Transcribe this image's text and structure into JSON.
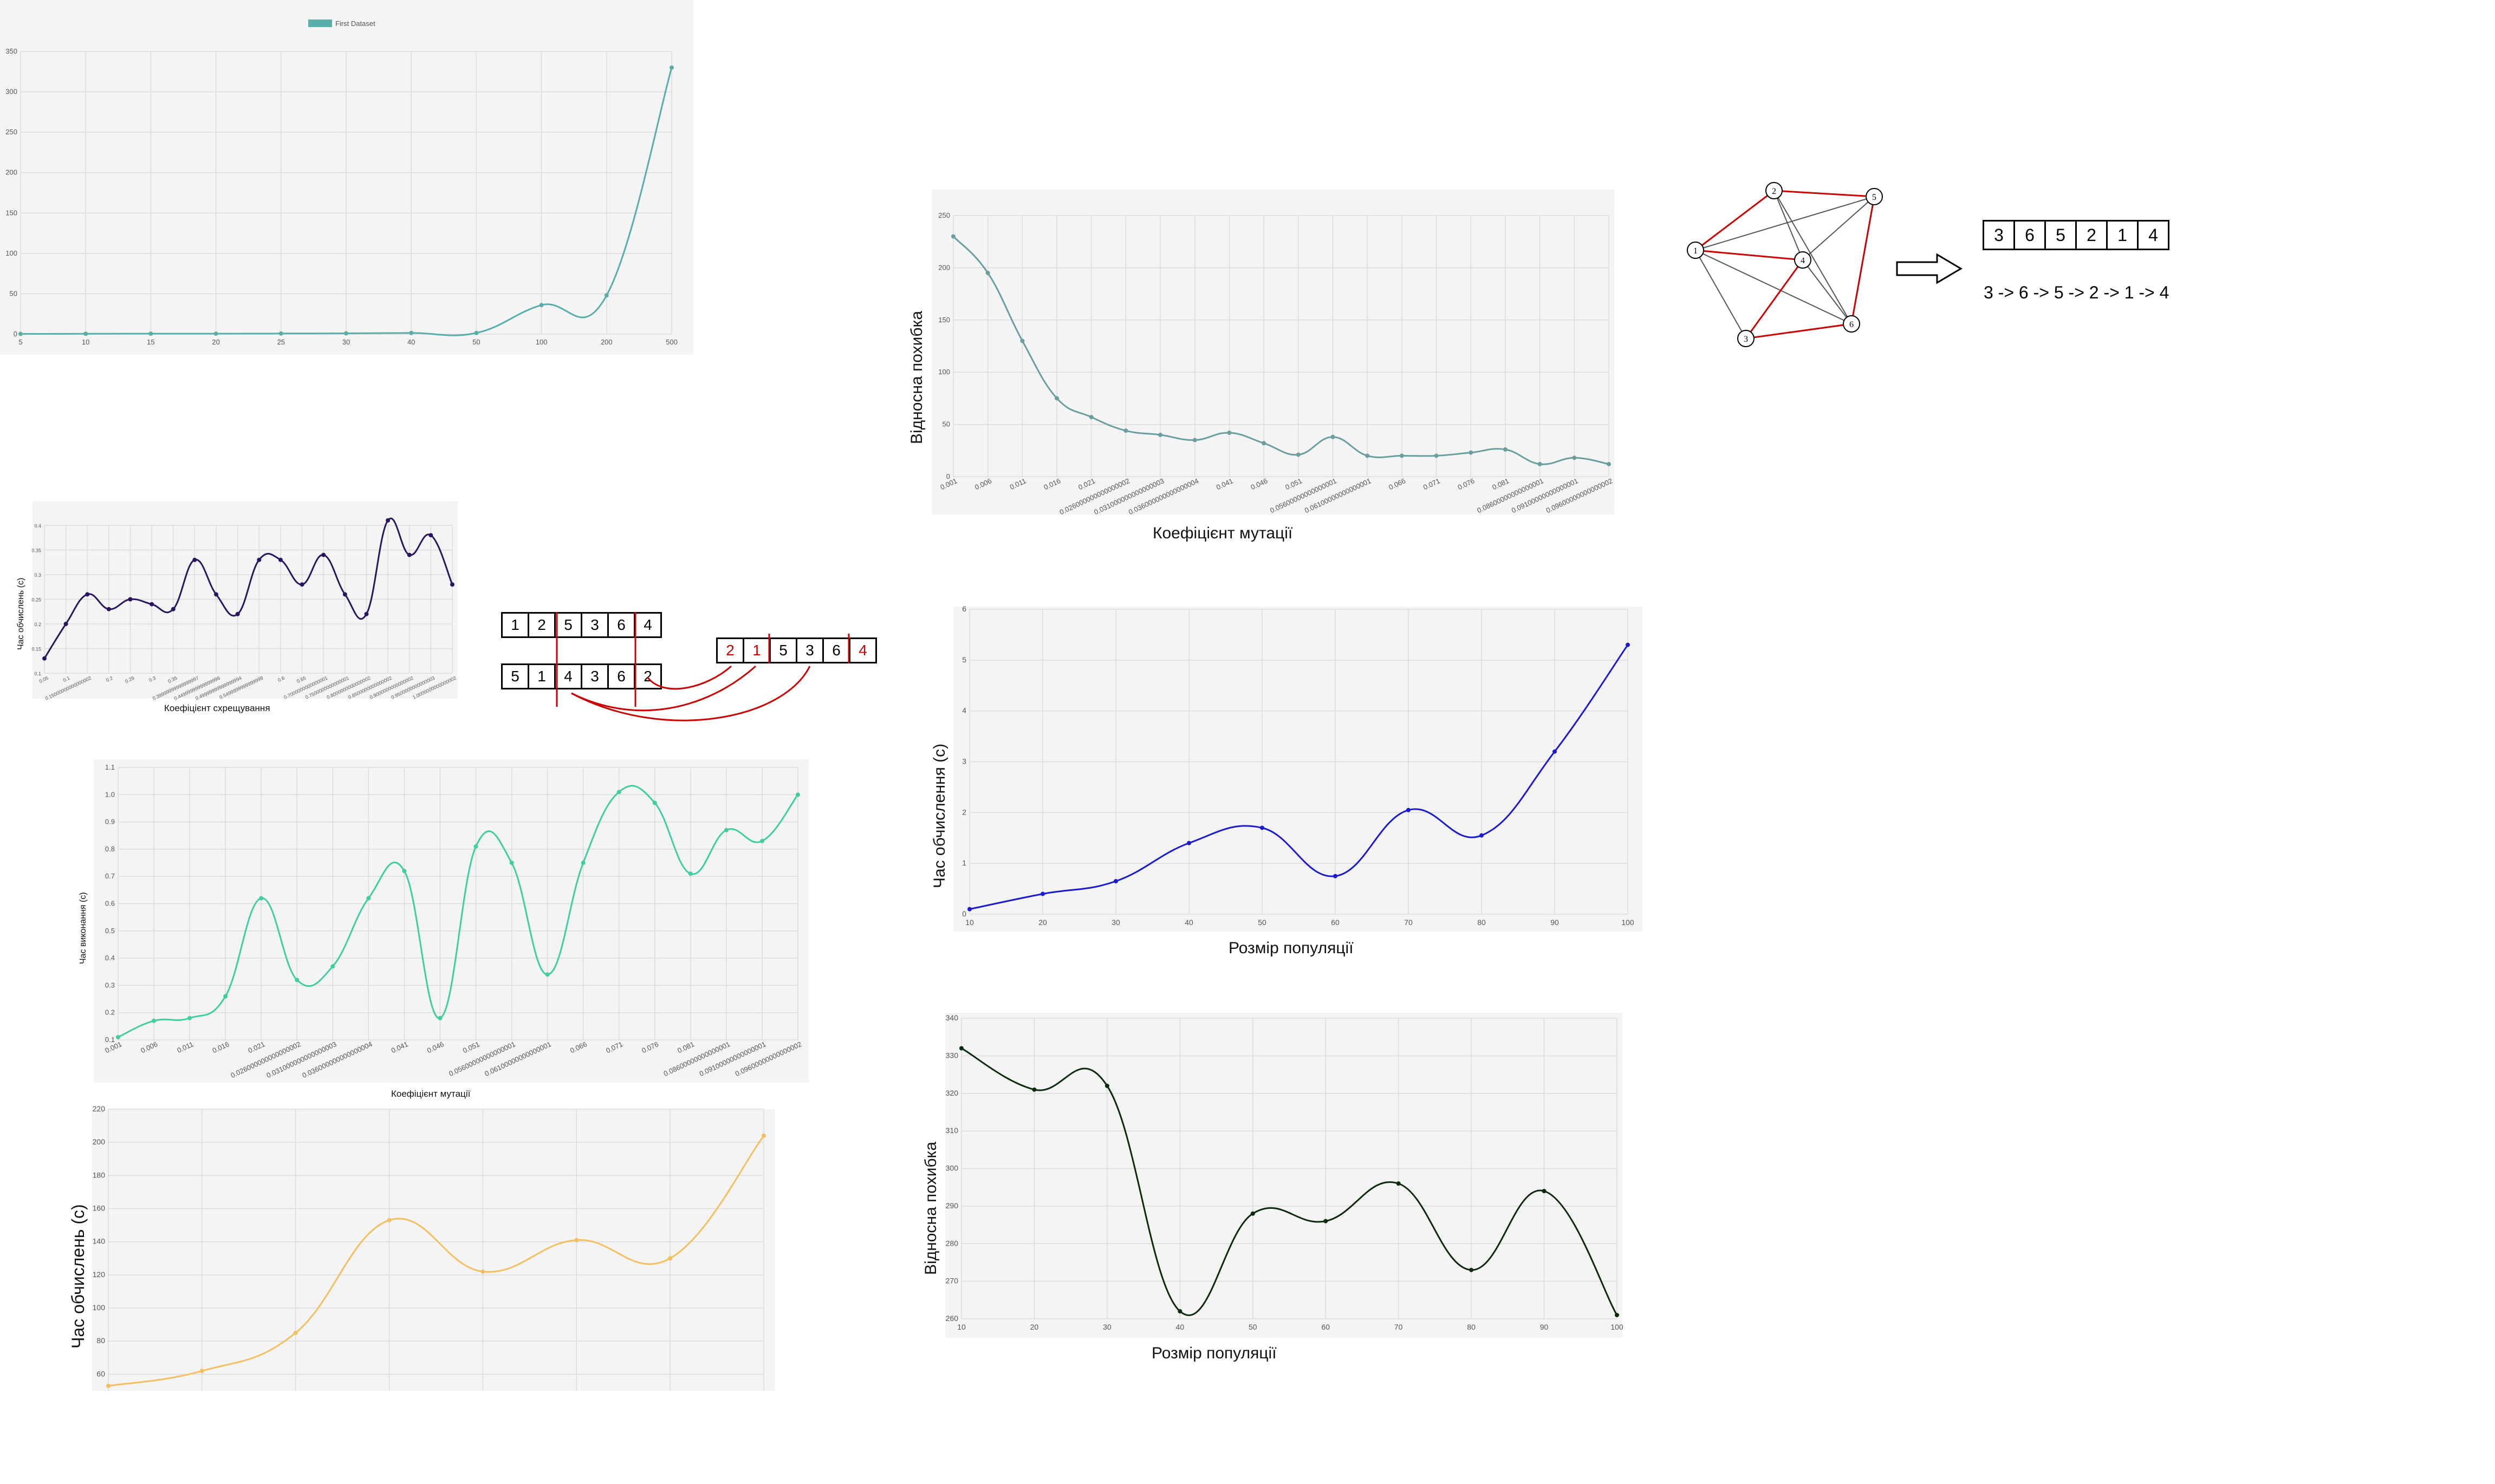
{
  "colors": {
    "teal": "#5aaea9",
    "grayteal": "#6a9ea0",
    "purple": "#2a1660",
    "aqua": "#3fcf9b",
    "orange": "#f2c060",
    "blue": "#1a1acf",
    "darkgreen": "#0c2a0c",
    "red": "#cc0000"
  },
  "chart_data": [
    {
      "id": "c1",
      "type": "line",
      "legend": "First Dataset",
      "legend_position": "top",
      "categories": [
        "5",
        "10",
        "15",
        "20",
        "25",
        "30",
        "40",
        "50",
        "100",
        "200",
        "500"
      ],
      "values": [
        0.3,
        0.5,
        0.6,
        0.6,
        0.8,
        1,
        1.5,
        1.5,
        36,
        48,
        330
      ],
      "ylim": [
        0,
        350
      ],
      "yticks": [
        "0",
        "50",
        "100",
        "150",
        "200",
        "250",
        "300",
        "350"
      ],
      "grid": true,
      "xlabel": "",
      "ylabel": ""
    },
    {
      "id": "c2",
      "type": "line",
      "xlabel": "Коефіцієнт мутації",
      "ylabel": "Відносна похибка",
      "categories": [
        "0.001",
        "0.006",
        "0.011",
        "0.016",
        "0.021",
        "0.026000000000000002",
        "0.031000000000000003",
        "0.036000000000000004",
        "0.041",
        "0.046",
        "0.051",
        "0.05600000000000001",
        "0.06100000000000001",
        "0.066",
        "0.071",
        "0.076",
        "0.081",
        "0.08600000000000001",
        "0.09100000000000001",
        "0.09600000000000002"
      ],
      "values": [
        230,
        195,
        130,
        75,
        57,
        44,
        40,
        35,
        42,
        32,
        21,
        38,
        20,
        20,
        20,
        23,
        26,
        12,
        18,
        12
      ],
      "ylim": [
        0,
        250
      ],
      "yticks": [
        "0",
        "50",
        "100",
        "150",
        "200",
        "250"
      ],
      "grid": true
    },
    {
      "id": "c3",
      "type": "line",
      "xlabel": "Коефіцієнт схрещування",
      "ylabel": "Час обчислень (с)",
      "categories": [
        "0.05",
        "0.1",
        "0.15000000000000002",
        "0.2",
        "0.25",
        "0.3",
        "0.35",
        "0.39999999999999997",
        "0.44999999999999996",
        "0.49999999999999994",
        "0.5499999999999999",
        "0.6",
        "0.65",
        "0.7000000000000001",
        "0.7500000000000001",
        "0.8000000000000002",
        "0.8500000000000002",
        "0.9000000000000002",
        "0.9500000000000003",
        "1.0000000000000002"
      ],
      "values": [
        0.13,
        0.2,
        0.26,
        0.23,
        0.25,
        0.24,
        0.23,
        0.33,
        0.26,
        0.22,
        0.33,
        0.33,
        0.28,
        0.34,
        0.26,
        0.22,
        0.41,
        0.34,
        0.38,
        0.28
      ],
      "ylim": [
        0.1,
        0.4
      ],
      "yticks": [
        "0.1",
        "0.15",
        "0.2",
        "0.25",
        "0.3",
        "0.35",
        "0.4"
      ],
      "grid": true
    },
    {
      "id": "c4",
      "type": "line",
      "xlabel": "Коефіцієнт мутації",
      "ylabel": "Час виконання (с)",
      "categories": [
        "0.001",
        "0.006",
        "0.011",
        "0.016",
        "0.021",
        "0.026000000000000002",
        "0.031000000000000003",
        "0.036000000000000004",
        "0.041",
        "0.046",
        "0.051",
        "0.05600000000000001",
        "0.06100000000000001",
        "0.066",
        "0.071",
        "0.076",
        "0.081",
        "0.08600000000000001",
        "0.09100000000000001",
        "0.09600000000000002"
      ],
      "values": [
        0.11,
        0.17,
        0.18,
        0.26,
        0.62,
        0.32,
        0.37,
        0.62,
        0.72,
        0.18,
        0.81,
        0.75,
        0.34,
        0.75,
        1.01,
        0.97,
        0.71,
        0.87,
        0.83,
        1.0
      ],
      "ylim": [
        0.1,
        1.1
      ],
      "yticks": [
        "0.1",
        "0.2",
        "0.3",
        "0.4",
        "0.5",
        "0.6",
        "0.7",
        "0.8",
        "0.9",
        "1.0",
        "1.1"
      ],
      "grid": true
    },
    {
      "id": "c5",
      "type": "line",
      "xlabel": "",
      "ylabel": "Час обчислень (с)",
      "categories": [
        "",
        "",
        "",
        "",
        "",
        "",
        "",
        ""
      ],
      "values": [
        53,
        62,
        85,
        153,
        122,
        141,
        130,
        204
      ],
      "ylim": [
        50,
        220
      ],
      "yticks": [
        "60",
        "80",
        "100",
        "120",
        "140",
        "160",
        "180",
        "200",
        "220"
      ],
      "grid": true
    },
    {
      "id": "c6",
      "type": "line",
      "xlabel": "Розмір популяції",
      "ylabel": "Час обчислення (с)",
      "categories": [
        "10",
        "20",
        "30",
        "40",
        "50",
        "60",
        "70",
        "80",
        "90",
        "100"
      ],
      "values": [
        0.1,
        0.4,
        0.65,
        1.4,
        1.7,
        0.75,
        2.05,
        1.55,
        3.2,
        5.3
      ],
      "ylim": [
        0,
        6
      ],
      "yticks": [
        "0",
        "1",
        "2",
        "3",
        "4",
        "5",
        "6"
      ],
      "grid": true
    },
    {
      "id": "c7",
      "type": "line",
      "xlabel": "Розмір популяції",
      "ylabel": "Відносна похибка",
      "categories": [
        "10",
        "20",
        "30",
        "40",
        "50",
        "60",
        "70",
        "80",
        "90",
        "100"
      ],
      "values": [
        332,
        321,
        322,
        262,
        288,
        286,
        296,
        273,
        294,
        261
      ],
      "ylim": [
        260,
        340
      ],
      "yticks": [
        "260",
        "270",
        "280",
        "290",
        "300",
        "310",
        "320",
        "330",
        "340"
      ],
      "grid": true
    }
  ],
  "crossover": {
    "parent1": [
      "1",
      "2",
      "5",
      "3",
      "6",
      "4"
    ],
    "parent2": [
      "5",
      "1",
      "4",
      "3",
      "6",
      "2"
    ],
    "child": [
      "2",
      "1",
      "5",
      "3",
      "6",
      "4"
    ],
    "child_red": [
      true,
      true,
      false,
      false,
      false,
      true
    ]
  },
  "graph": {
    "nodes": [
      "1",
      "2",
      "3",
      "4",
      "5",
      "6"
    ],
    "route_cells": [
      "3",
      "6",
      "5",
      "2",
      "1",
      "4"
    ],
    "route_text": "3 -> 6 -> 5 -> 2 -> 1 -> 4"
  }
}
